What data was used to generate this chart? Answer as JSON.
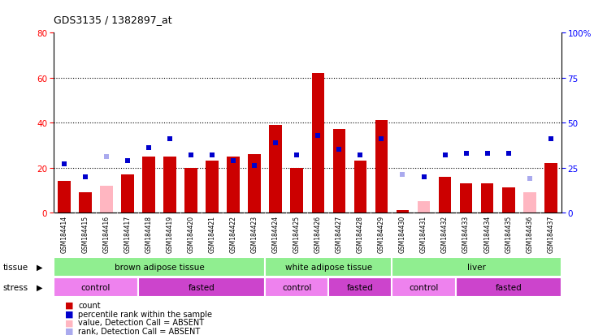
{
  "title": "GDS3135 / 1382897_at",
  "samples": [
    "GSM184414",
    "GSM184415",
    "GSM184416",
    "GSM184417",
    "GSM184418",
    "GSM184419",
    "GSM184420",
    "GSM184421",
    "GSM184422",
    "GSM184423",
    "GSM184424",
    "GSM184425",
    "GSM184426",
    "GSM184427",
    "GSM184428",
    "GSM184429",
    "GSM184430",
    "GSM184431",
    "GSM184432",
    "GSM184433",
    "GSM184434",
    "GSM184435",
    "GSM184436",
    "GSM184437"
  ],
  "count_values": [
    14,
    9,
    12,
    17,
    25,
    25,
    20,
    23,
    25,
    26,
    39,
    20,
    62,
    37,
    23,
    41,
    1,
    5,
    16,
    13,
    13,
    11,
    9,
    22
  ],
  "count_absent": [
    false,
    false,
    true,
    false,
    false,
    false,
    false,
    false,
    false,
    false,
    false,
    false,
    false,
    false,
    false,
    false,
    false,
    true,
    false,
    false,
    false,
    false,
    true,
    false
  ],
  "rank_values": [
    27,
    20,
    31,
    29,
    36,
    41,
    32,
    32,
    29,
    26,
    39,
    32,
    43,
    35,
    32,
    41,
    21,
    20,
    32,
    33,
    33,
    33,
    19,
    41
  ],
  "rank_absent": [
    false,
    false,
    true,
    false,
    false,
    false,
    false,
    false,
    false,
    false,
    false,
    false,
    false,
    false,
    false,
    false,
    true,
    false,
    false,
    false,
    false,
    false,
    true,
    false
  ],
  "tissue_boundaries": [
    0,
    10,
    16,
    24
  ],
  "tissue_labels": [
    "brown adipose tissue",
    "white adipose tissue",
    "liver"
  ],
  "stress_boundaries": [
    0,
    4,
    10,
    13,
    16,
    19,
    24
  ],
  "stress_labels": [
    "control",
    "fasted",
    "control",
    "fasted",
    "control",
    "fasted"
  ],
  "ylim_left": [
    0,
    80
  ],
  "ylim_right": [
    0,
    100
  ],
  "yticks_left": [
    0,
    20,
    40,
    60,
    80
  ],
  "yticks_right": [
    0,
    25,
    50,
    75,
    100
  ],
  "ytick_right_labels": [
    "0",
    "25",
    "50",
    "75",
    "100%"
  ],
  "bar_color": "#CC0000",
  "bar_absent_color": "#FFB6C1",
  "rank_color": "#0000CC",
  "rank_absent_color": "#AAAAEE",
  "tissue_color": "#90EE90",
  "stress_control_color": "#EE82EE",
  "stress_fasted_color": "#CC44CC",
  "xticklabel_bg": "#D0D0D0",
  "legend_items": [
    {
      "color": "#CC0000",
      "label": "count"
    },
    {
      "color": "#0000CC",
      "label": "percentile rank within the sample"
    },
    {
      "color": "#FFB6C1",
      "label": "value, Detection Call = ABSENT"
    },
    {
      "color": "#AAAAEE",
      "label": "rank, Detection Call = ABSENT"
    }
  ]
}
